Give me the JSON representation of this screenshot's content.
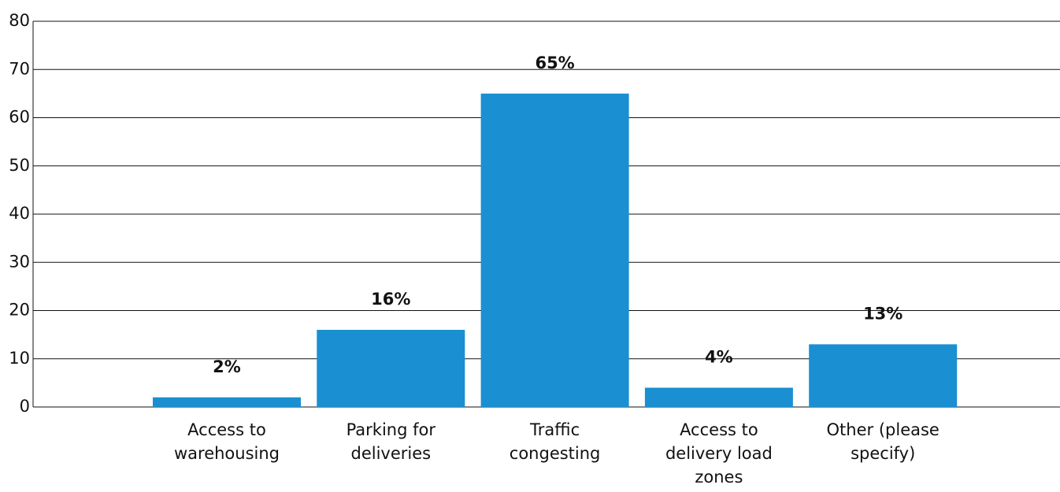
{
  "chart_data": {
    "type": "bar",
    "categories": [
      "Access to warehousing",
      "Parking for deliveries",
      "Traffic congesting",
      "Access to delivery load zones",
      "Other (please specify)"
    ],
    "values": [
      2,
      16,
      65,
      4,
      13
    ],
    "value_labels": [
      "2%",
      "16%",
      "65%",
      "4%",
      "13%"
    ],
    "color": "#1a8fd1",
    "ylim": [
      0,
      80
    ],
    "yticks": [
      0,
      10,
      20,
      30,
      40,
      50,
      60,
      70,
      80
    ],
    "grid": true
  }
}
